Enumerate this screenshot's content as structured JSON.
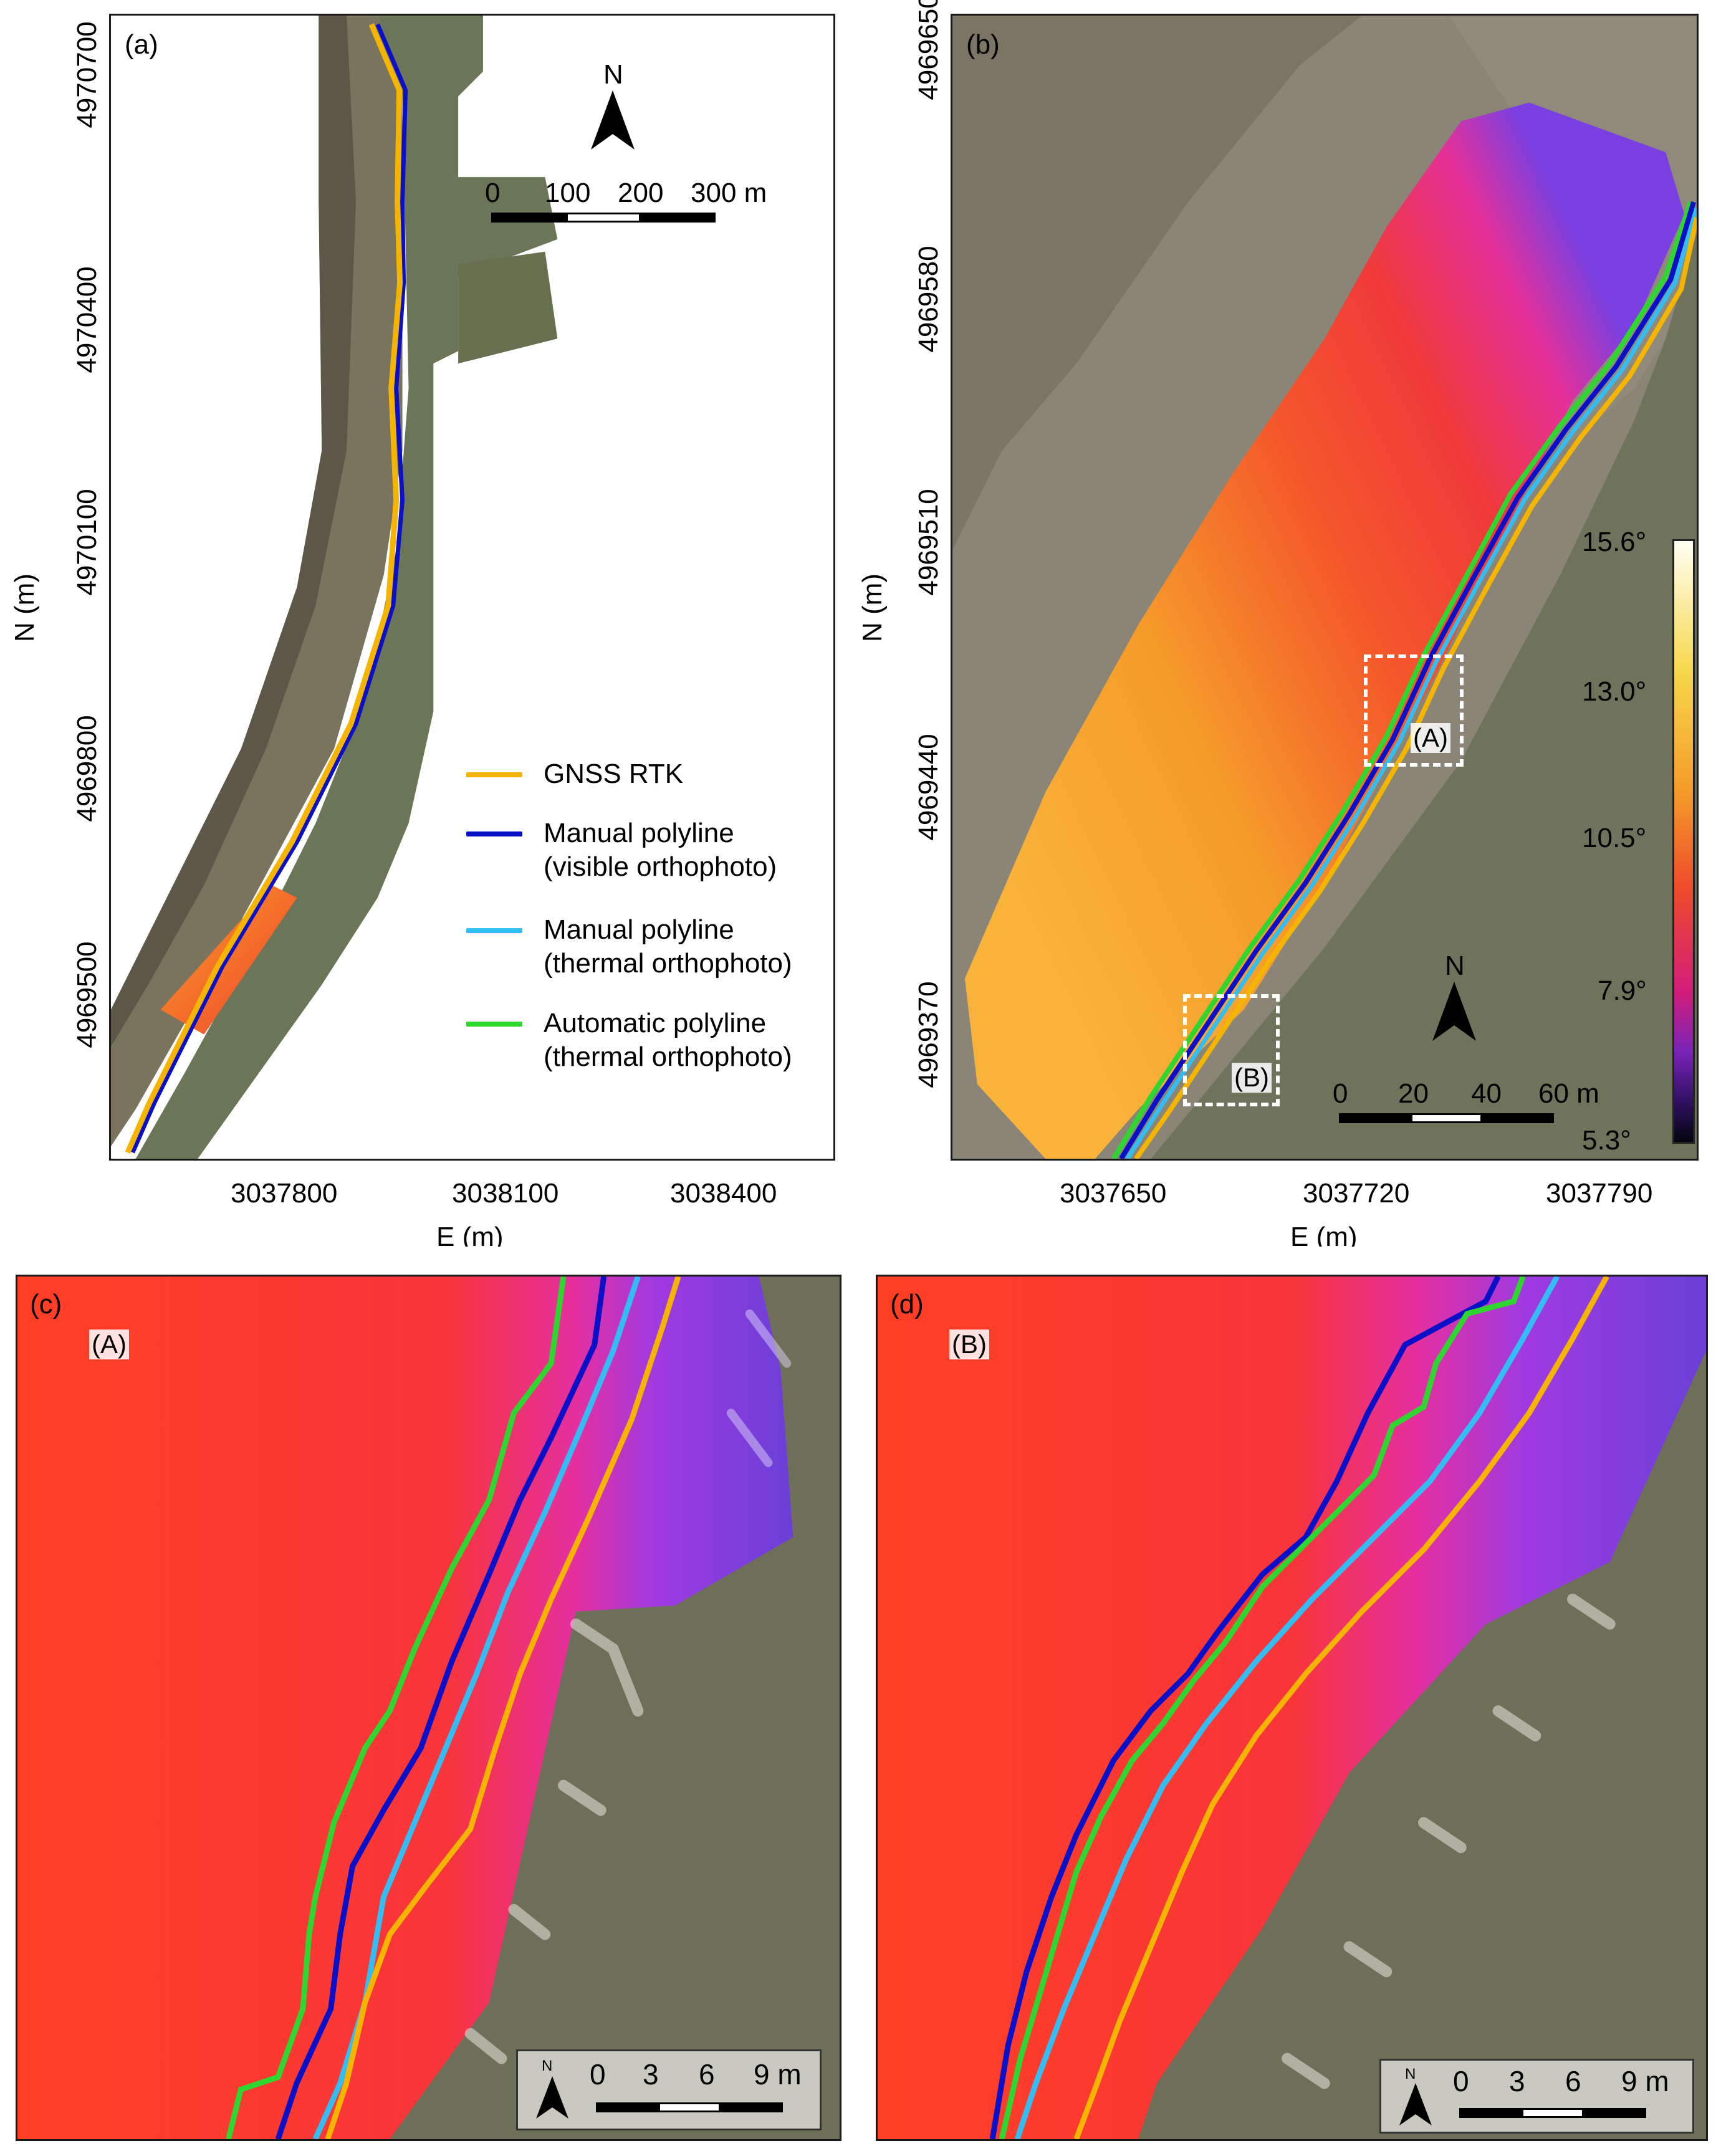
{
  "panels": {
    "a": {
      "label": "(a)",
      "xlabel": "E (m)",
      "ylabel": "N (m)",
      "xticks": [
        "3037800",
        "3038100",
        "3038400"
      ],
      "yticks": [
        "4970700",
        "4970400",
        "4970100",
        "4969800",
        "4969500"
      ],
      "north": "N",
      "scale_labels": [
        "0",
        "100",
        "200",
        "300 m"
      ],
      "legend": [
        {
          "label": "GNSS RTK",
          "color": "#f5b400"
        },
        {
          "label": "Manual polyline\n(visible orthophoto)",
          "color": "#0a10c8"
        },
        {
          "label": "Manual polyline\n(thermal orthophoto)",
          "color": "#33bdf2"
        },
        {
          "label": "Automatic polyline\n(thermal orthophoto)",
          "color": "#2fd62f"
        }
      ]
    },
    "b": {
      "label": "(b)",
      "xlabel": "E (m)",
      "ylabel": "N (m)",
      "xticks": [
        "3037650",
        "3037720",
        "3037790"
      ],
      "yticks": [
        "4969650",
        "4969580",
        "4969510",
        "4969440",
        "4969370"
      ],
      "north": "N",
      "scale_labels": [
        "0",
        "20",
        "40",
        "60 m"
      ],
      "inset_labels": [
        "(A)",
        "(B)"
      ],
      "colorbar": {
        "labels": [
          "15.6°",
          "13.0°",
          "10.5°",
          "7.9°",
          "5.3°"
        ],
        "stops": [
          "#fffff2",
          "#f6d64a",
          "#f59a1e",
          "#ee4a2a",
          "#d21d7a",
          "#7a23b8",
          "#2a0f5a",
          "#050510"
        ]
      }
    },
    "c": {
      "label": "(c)",
      "tag": "(A)",
      "north": "N",
      "scale_labels": [
        "0",
        "3",
        "6",
        "9 m"
      ]
    },
    "d": {
      "label": "(d)",
      "tag": "(B)",
      "north": "N",
      "scale_labels": [
        "0",
        "3",
        "6",
        "9 m"
      ]
    }
  },
  "colors": {
    "gnss": "#f5b400",
    "manual_visible": "#0a10c8",
    "manual_thermal": "#33bdf2",
    "automatic": "#2fd62f",
    "thermal_hot": "#ff3a22",
    "thermal_mid": "#e5309a",
    "thermal_cool": "#7a3fe0",
    "sea": "#6f725c",
    "dune": "#77705f"
  }
}
